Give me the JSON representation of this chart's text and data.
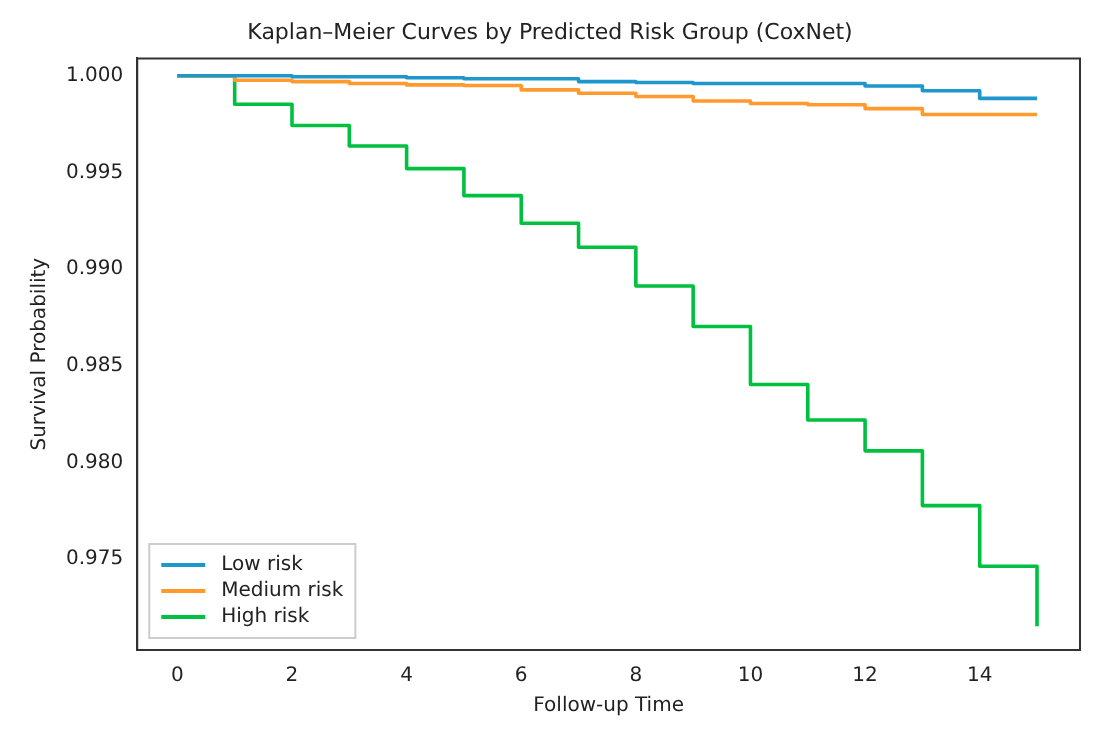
{
  "chart_data": {
    "type": "step",
    "title": "Kaplan–Meier Curves by Predicted Risk Group (CoxNet)",
    "xlabel": "Follow-up Time",
    "ylabel": "Survival Probability",
    "x": [
      0,
      1,
      2,
      3,
      4,
      5,
      6,
      7,
      8,
      9,
      10,
      11,
      12,
      13,
      14,
      15
    ],
    "series": [
      {
        "name": "Low risk",
        "color": "#1f96cc",
        "values": [
          1.0,
          1.0,
          0.99995,
          0.99995,
          0.9999,
          0.99985,
          0.99985,
          0.9997,
          0.99965,
          0.9996,
          0.9996,
          0.9996,
          0.99947,
          0.99923,
          0.99883,
          0.99883
        ]
      },
      {
        "name": "Medium risk",
        "color": "#ff9a2e",
        "values": [
          1.0,
          0.99977,
          0.9997,
          0.9996,
          0.99953,
          0.9995,
          0.99927,
          0.9991,
          0.99893,
          0.9987,
          0.99857,
          0.9985,
          0.9983,
          0.998,
          0.998,
          0.998
        ]
      },
      {
        "name": "High risk",
        "color": "#00c040",
        "values": [
          1.0,
          0.99853,
          0.99743,
          0.99637,
          0.9952,
          0.9938,
          0.99237,
          0.99113,
          0.98913,
          0.98703,
          0.98403,
          0.9822,
          0.9806,
          0.97777,
          0.97463,
          0.97153
        ]
      }
    ],
    "xlim": [
      -0.7,
      15.75
    ],
    "ylim": [
      0.9703,
      1.0009
    ],
    "xticks": [
      0,
      2,
      4,
      6,
      8,
      10,
      12,
      14
    ],
    "yticks": [
      {
        "value": 0.975,
        "label": "0.975"
      },
      {
        "value": 0.98,
        "label": "0.980"
      },
      {
        "value": 0.985,
        "label": "0.985"
      },
      {
        "value": 0.99,
        "label": "0.990"
      },
      {
        "value": 0.995,
        "label": "0.995"
      },
      {
        "value": 1.0,
        "label": "1.000"
      }
    ],
    "grid": false,
    "legend": "bottom left",
    "line_style": "solid",
    "marker": "none"
  }
}
